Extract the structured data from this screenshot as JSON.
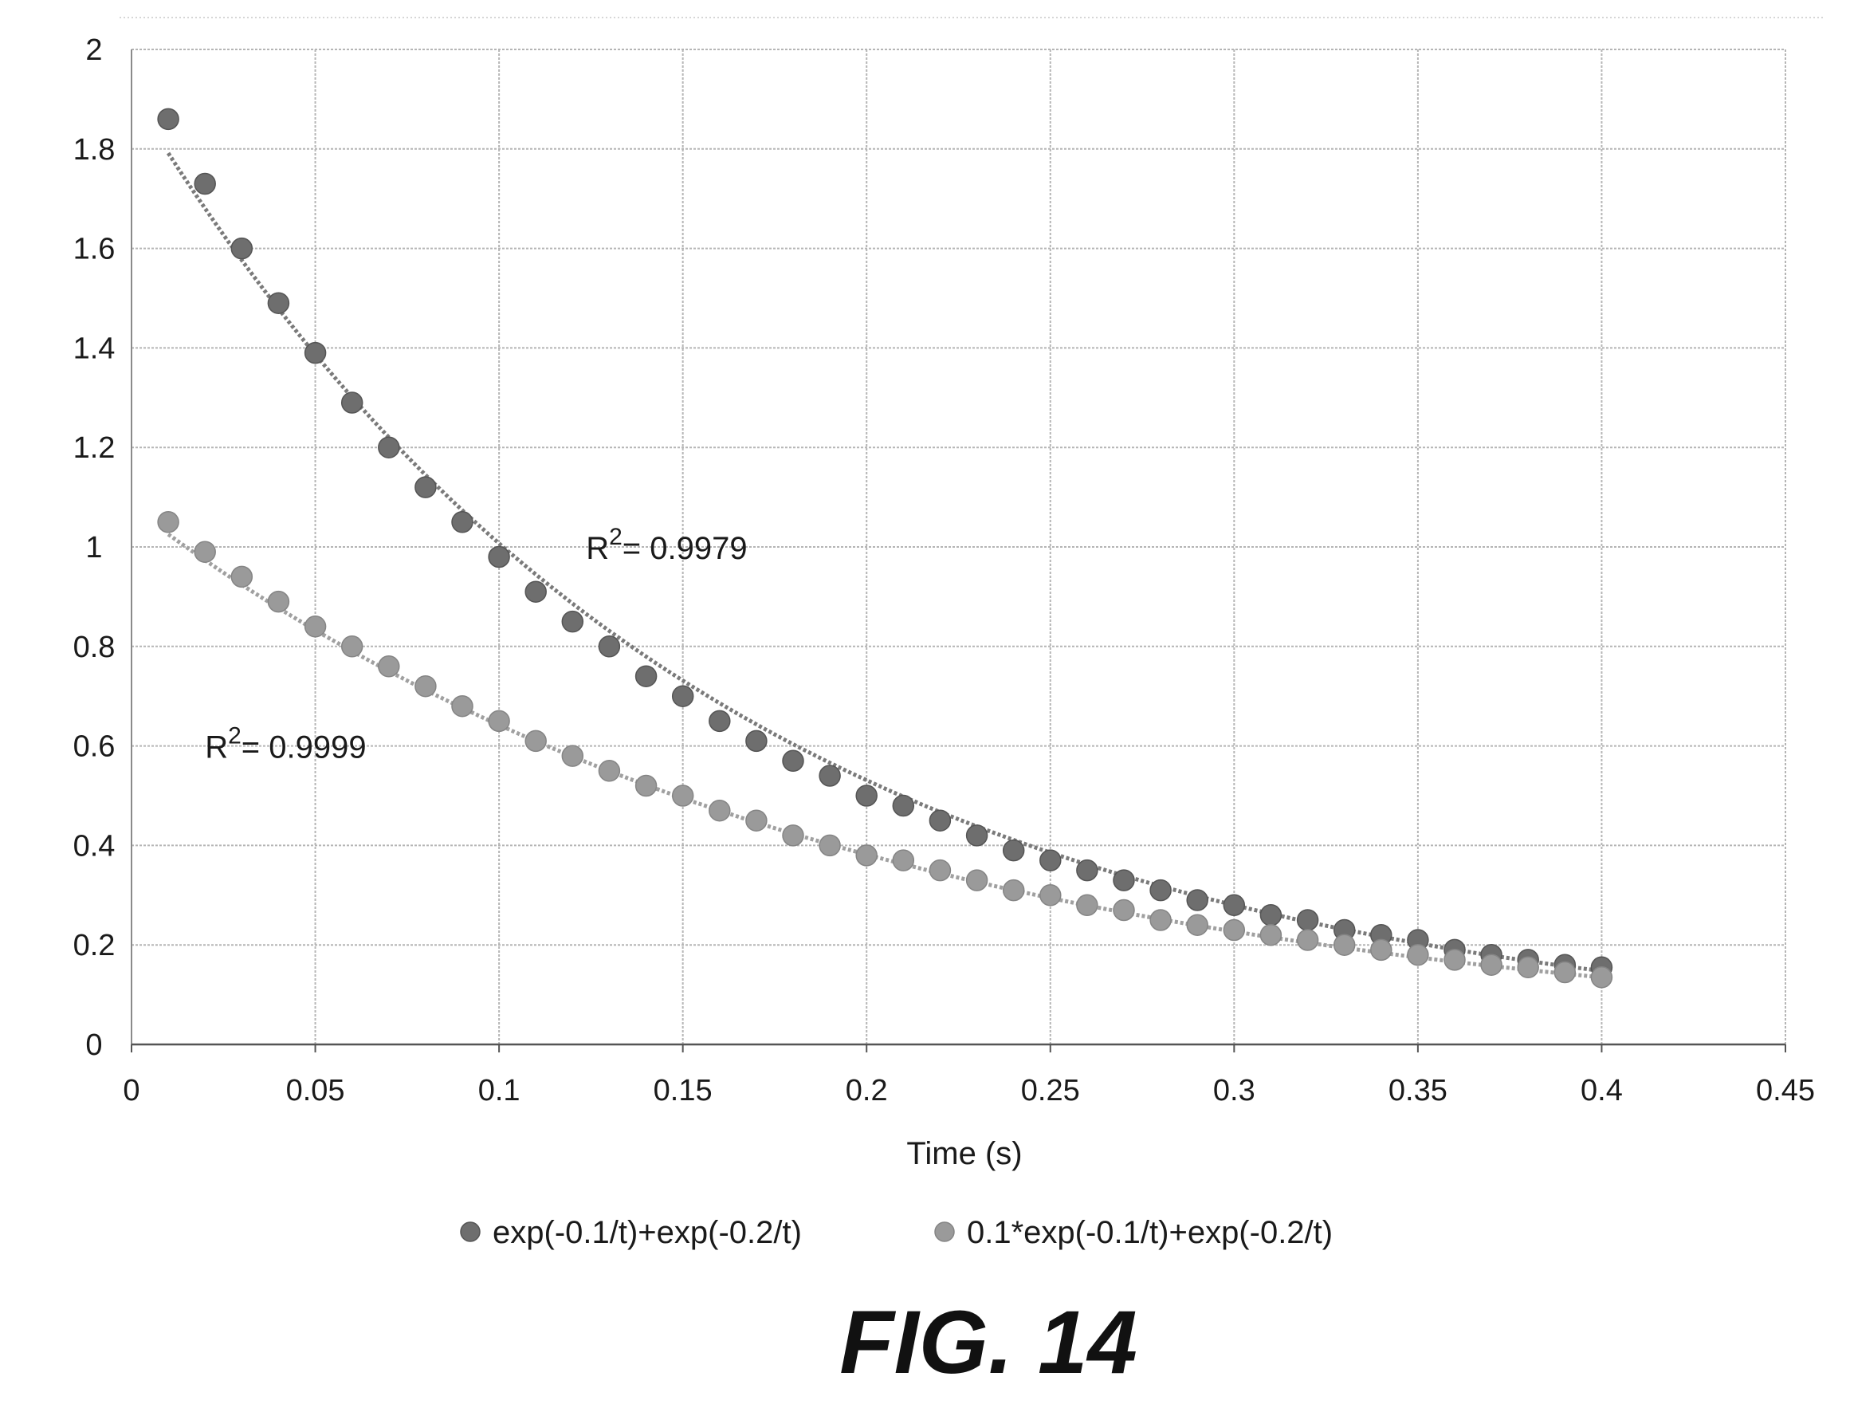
{
  "chart_data": {
    "type": "scatter",
    "title": "",
    "xlabel": "Time (s)",
    "ylabel": "",
    "xlim": [
      0,
      0.45
    ],
    "ylim": [
      0,
      2
    ],
    "x_ticks": [
      "0",
      "0.05",
      "0.1",
      "0.15",
      "0.2",
      "0.25",
      "0.3",
      "0.35",
      "0.4",
      "0.45"
    ],
    "y_ticks": [
      "0",
      "0.2",
      "0.4",
      "0.6",
      "0.8",
      "1",
      "1.2",
      "1.4",
      "1.6",
      "1.8",
      "2"
    ],
    "grid": true,
    "legend_position": "bottom",
    "x": [
      0.01,
      0.02,
      0.03,
      0.04,
      0.05,
      0.06,
      0.07,
      0.08,
      0.09,
      0.1,
      0.11,
      0.12,
      0.13,
      0.14,
      0.15,
      0.16,
      0.17,
      0.18,
      0.19,
      0.2,
      0.21,
      0.22,
      0.23,
      0.24,
      0.25,
      0.26,
      0.27,
      0.28,
      0.29,
      0.3,
      0.31,
      0.32,
      0.33,
      0.34,
      0.35,
      0.36,
      0.37,
      0.38,
      0.39,
      0.4
    ],
    "series": [
      {
        "name": "exp(-0.1/t)+exp(-0.2/t)",
        "color": "#6e6e6e",
        "values": [
          1.86,
          1.73,
          1.6,
          1.49,
          1.39,
          1.29,
          1.2,
          1.12,
          1.05,
          0.98,
          0.91,
          0.85,
          0.8,
          0.74,
          0.7,
          0.65,
          0.61,
          0.57,
          0.54,
          0.5,
          0.48,
          0.45,
          0.42,
          0.39,
          0.37,
          0.35,
          0.33,
          0.31,
          0.29,
          0.28,
          0.26,
          0.25,
          0.23,
          0.22,
          0.21,
          0.19,
          0.18,
          0.17,
          0.16,
          0.155
        ],
        "trendline": {
          "a": 1.91,
          "b": 6.4,
          "x_start": 0.01,
          "x_end": 0.4
        },
        "r2_label": "R",
        "r2_sup": "2",
        "r2_value": "= 0.9979",
        "r2_x": 0.128,
        "r2_y": 1.0
      },
      {
        "name": "0.1*exp(-0.1/t)+exp(-0.2/t)",
        "color": "#9a9a9a",
        "values": [
          1.05,
          0.99,
          0.94,
          0.89,
          0.84,
          0.8,
          0.76,
          0.72,
          0.68,
          0.65,
          0.61,
          0.58,
          0.55,
          0.52,
          0.5,
          0.47,
          0.45,
          0.42,
          0.4,
          0.38,
          0.37,
          0.35,
          0.33,
          0.31,
          0.3,
          0.28,
          0.27,
          0.25,
          0.24,
          0.23,
          0.22,
          0.21,
          0.2,
          0.19,
          0.18,
          0.17,
          0.16,
          0.155,
          0.145,
          0.135
        ],
        "trendline": {
          "a": 1.08,
          "b": 5.2,
          "x_start": 0.01,
          "x_end": 0.4
        },
        "r2_label": "R",
        "r2_sup": "2",
        "r2_value": "= 0.9999",
        "r2_x": 0.02,
        "r2_y": 0.6
      }
    ]
  },
  "caption": "FIG. 14"
}
